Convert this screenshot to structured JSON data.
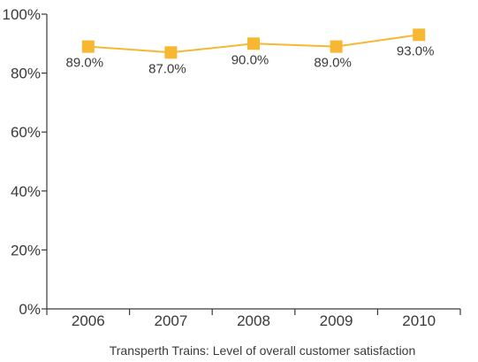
{
  "chart_data": {
    "type": "line",
    "title": "Transperth Trains: Level of overall customer satisfaction",
    "xlabel": "",
    "ylabel": "",
    "categories": [
      "2006",
      "2007",
      "2008",
      "2009",
      "2010"
    ],
    "series": [
      {
        "values": [
          89.0,
          87.0,
          90.0,
          89.0,
          93.0
        ],
        "labels": [
          "89.0%",
          "87.0%",
          "90.0%",
          "89.0%",
          "93.0%"
        ]
      }
    ],
    "ylim": [
      0,
      100
    ],
    "yticks": [
      0,
      20,
      40,
      60,
      80,
      100
    ],
    "ytick_labels": [
      "0%",
      "20%",
      "40%",
      "60%",
      "80%",
      "100%"
    ],
    "grid": false,
    "legend": "none",
    "colors": {
      "line": "#f7b733",
      "marker": "#f7b733",
      "axis": "#3a3a3a",
      "text": "#3a3a3a"
    }
  }
}
